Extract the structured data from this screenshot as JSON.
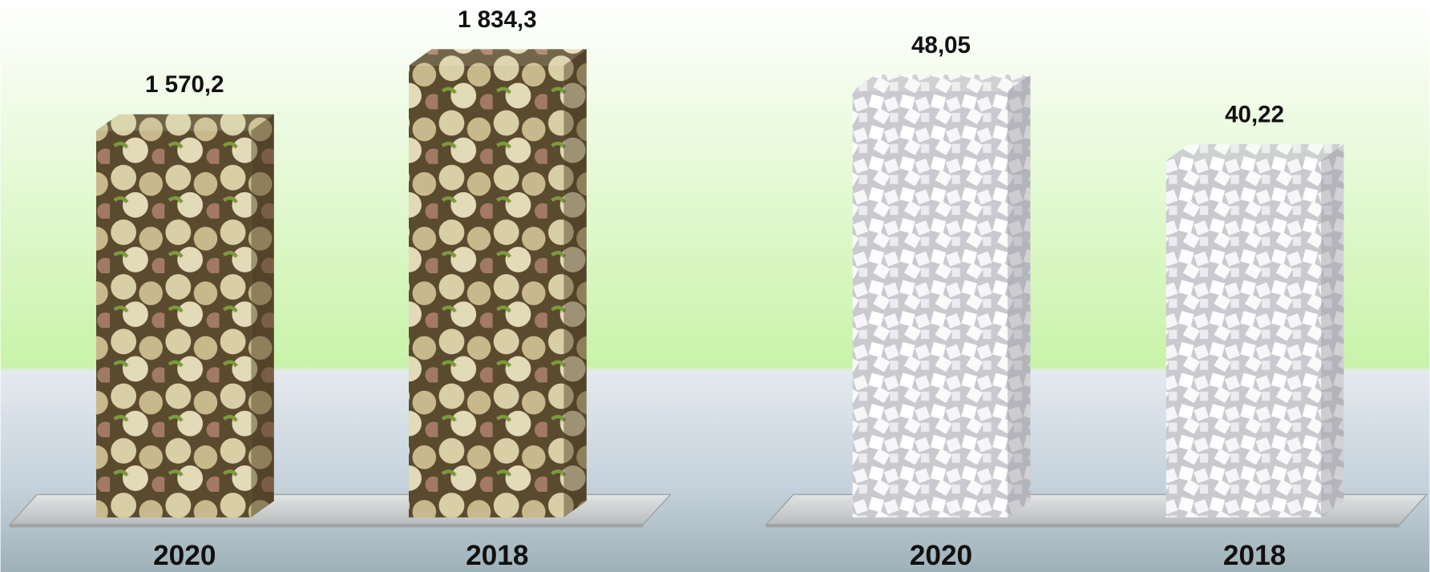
{
  "chart_data": [
    {
      "type": "bar",
      "categories": [
        "2020",
        "2018"
      ],
      "values": [
        1570.2,
        1834.3
      ],
      "value_labels": [
        "1 570,2",
        "1 834,3"
      ]
    },
    {
      "type": "bar",
      "categories": [
        "2020",
        "2018"
      ],
      "values": [
        48.05,
        40.22
      ],
      "value_labels": [
        "48,05",
        "40,22"
      ]
    }
  ]
}
